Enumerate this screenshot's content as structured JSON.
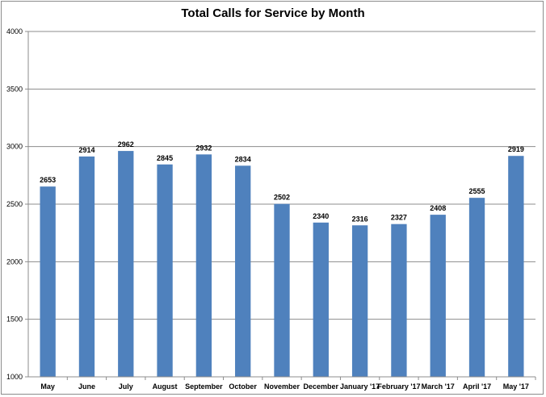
{
  "chart_data": {
    "type": "bar",
    "title": "Total Calls for Service by Month",
    "categories": [
      "May",
      "June",
      "July",
      "August",
      "September",
      "October",
      "November",
      "December",
      "January '17",
      "February '17",
      "March '17",
      "April '17",
      "May '17"
    ],
    "values": [
      2653,
      2914,
      2962,
      2845,
      2932,
      2834,
      2502,
      2340,
      2316,
      2327,
      2408,
      2555,
      2919
    ],
    "ylim": [
      1000,
      4000
    ],
    "yticks": [
      1000,
      1500,
      2000,
      2500,
      3000,
      3500,
      4000
    ],
    "grid": true,
    "legend": "none",
    "colors": {
      "bar": "#4f81bd",
      "grid": "#8c8c8c"
    }
  }
}
